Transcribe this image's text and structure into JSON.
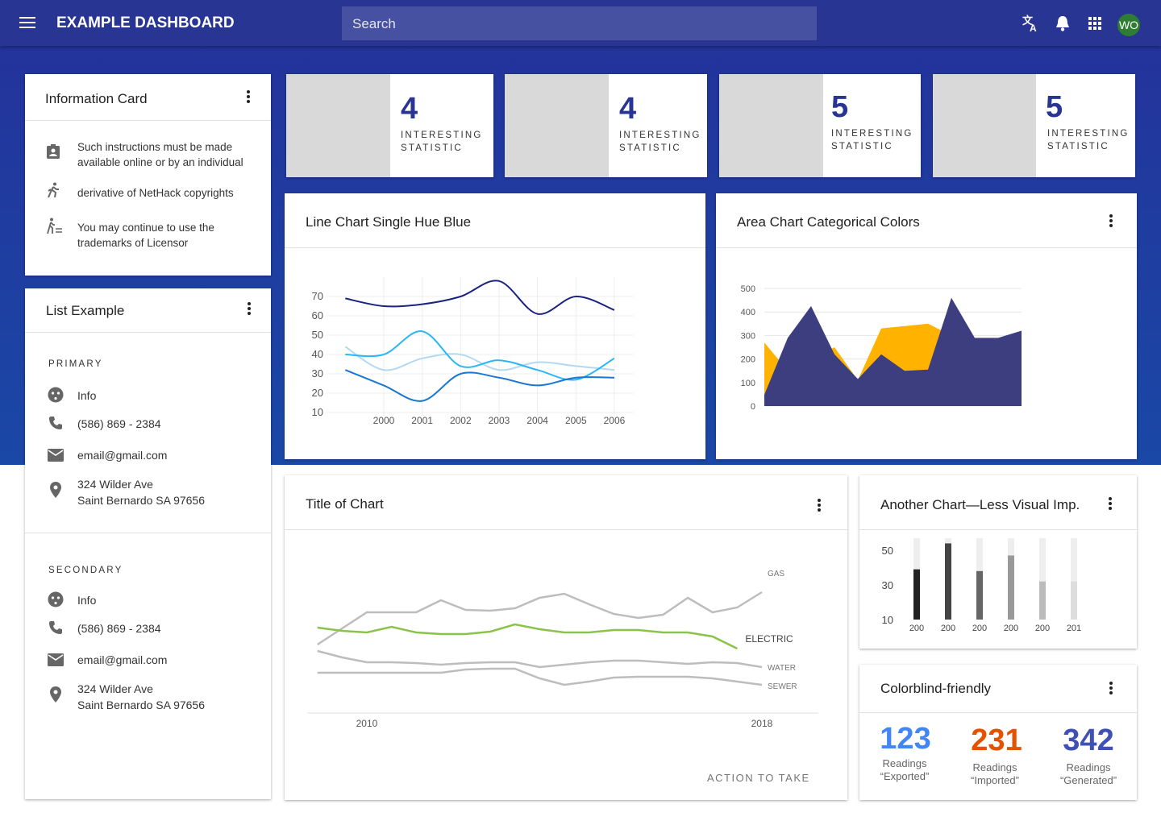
{
  "header": {
    "title": "EXAMPLE DASHBOARD",
    "search": "Search",
    "avatar": "WO"
  },
  "info_card": {
    "title": "Information Card",
    "items": [
      "Such instructions must be made available online or by an individual",
      "derivative of NetHack copyrights",
      "You may continue to use the trademarks of Licensor"
    ]
  },
  "list_card": {
    "title": "List Example",
    "sections": [
      {
        "heading": "PRIMARY",
        "items": [
          "Info",
          "(586) 869 - 2384",
          "email@gmail.com",
          "324 Wilder Ave",
          "Saint Bernardo SA 97656"
        ]
      },
      {
        "heading": "SECONDARY",
        "items": [
          "Info",
          "(586) 869 - 2384",
          "email@gmail.com",
          "324 Wilder Ave",
          "Saint Bernardo SA 97656"
        ]
      }
    ]
  },
  "stats": [
    {
      "value": 4,
      "label": "INTERESTING STATISTIC"
    },
    {
      "value": 4,
      "label": "INTERESTING STATISTIC"
    },
    {
      "value": 5,
      "label": "INTERESTING STATISTIC"
    },
    {
      "value": 5,
      "label": "INTERESTING STATISTIC"
    }
  ],
  "chart_data": [
    {
      "type": "line",
      "title": "Line Chart Single Hue Blue",
      "smooth": true,
      "grid": true,
      "x": [
        1999,
        2000,
        2001,
        2002,
        2003,
        2004,
        2005,
        2006
      ],
      "xlim": [
        1998.5,
        2006.5
      ],
      "xticks": [
        2000,
        2001,
        2002,
        2003,
        2004,
        2005,
        2006
      ],
      "ylim": [
        8,
        80
      ],
      "yticks": [
        10,
        20,
        30,
        40,
        50,
        60,
        70
      ],
      "series": [
        {
          "color": "#b3d9f2",
          "values": [
            44,
            32,
            38,
            40,
            32,
            36,
            34,
            32
          ]
        },
        {
          "color": "#29b6f6",
          "values": [
            40,
            40,
            52,
            34,
            37,
            32,
            27,
            38
          ]
        },
        {
          "color": "#1976d2",
          "values": [
            32,
            24,
            16,
            30,
            28,
            24,
            28,
            28
          ]
        },
        {
          "color": "#1a237e",
          "values": [
            69,
            65,
            66,
            70,
            78,
            61,
            70,
            63
          ]
        }
      ]
    },
    {
      "type": "area",
      "title": "Area Chart Categorical Colors",
      "grid": true,
      "categories": [
        null,
        null,
        null,
        null,
        null,
        null,
        null,
        null,
        null,
        null,
        null,
        null
      ],
      "ylim": [
        0,
        500
      ],
      "yticks": [
        0,
        100,
        200,
        300,
        400,
        500
      ],
      "series": [
        {
          "color": "#ffb300",
          "values": [
            270,
            150,
            200,
            250,
            110,
            330,
            340,
            350,
            300,
            250,
            250,
            280
          ]
        },
        {
          "color": "#3d3e7f",
          "values": [
            48,
            290,
            425,
            220,
            115,
            220,
            150,
            155,
            460,
            290,
            290,
            320
          ]
        }
      ]
    },
    {
      "type": "line",
      "title": "Title of Chart",
      "smooth": false,
      "grid": false,
      "end_labels": true,
      "action": "ACTION TO TAKE",
      "x": [
        2009,
        2009.5,
        2010,
        2010.5,
        2011,
        2011.5,
        2012,
        2012.5,
        2013,
        2013.5,
        2014,
        2014.5,
        2015,
        2015.5,
        2016,
        2016.5,
        2017,
        2017.5,
        2018
      ],
      "xlim": [
        2008.75,
        2018.25
      ],
      "xticks": [
        2010,
        2018
      ],
      "ylim": [
        0,
        100
      ],
      "series": [
        {
          "name": "GAS",
          "color": "#bdbdbd",
          "values": [
            42.5,
            52.5,
            62.5,
            62.5,
            62.5,
            70,
            64,
            63.5,
            65,
            71.5,
            74,
            67.5,
            61.5,
            59,
            61,
            71.5,
            62.5,
            65.5,
            75
          ]
        },
        {
          "name": "ELECTRIC",
          "color": "#8bc34a",
          "values": [
            53,
            51,
            50,
            53.5,
            50,
            49,
            49,
            50.5,
            55,
            52,
            50,
            50,
            51.5,
            51.5,
            50,
            50,
            47.5,
            40,
            null
          ]
        },
        {
          "name": "WATER",
          "color": "#bdbdbd",
          "values": [
            38.5,
            34.5,
            31.5,
            31.5,
            31,
            30,
            31,
            31.5,
            31.5,
            28.5,
            30,
            31.5,
            32.5,
            32.5,
            31.5,
            30.5,
            31.5,
            31,
            28.5
          ]
        },
        {
          "name": "SEWER",
          "color": "#bdbdbd",
          "values": [
            25,
            25,
            25,
            25,
            25,
            25,
            27,
            27.5,
            27.5,
            21.5,
            17.5,
            19.5,
            22,
            22.5,
            22.5,
            22.5,
            21.5,
            19.5,
            17.5
          ]
        }
      ]
    },
    {
      "type": "bar",
      "title": "Another Chart—Less Visual Imp.",
      "categories": [
        "200",
        "200",
        "200",
        "200",
        "200",
        "201"
      ],
      "values": [
        39,
        54,
        38,
        47,
        32,
        32
      ],
      "colors": [
        "#222222",
        "#444444",
        "#666666",
        "#999999",
        "#bbbbbb",
        "#dddddd"
      ],
      "ylim": [
        10,
        57
      ],
      "yticks": [
        10,
        30,
        50
      ]
    }
  ],
  "readings_card": {
    "title": "Colorblind-friendly",
    "items": [
      {
        "value": 123,
        "label": "Readings “Exported”",
        "color": "#4285f4"
      },
      {
        "value": 231,
        "label": "Readings “Imported”",
        "color": "#e65100"
      },
      {
        "value": 342,
        "label": "Readings “Generated”",
        "color": "#3f51b5"
      }
    ]
  }
}
